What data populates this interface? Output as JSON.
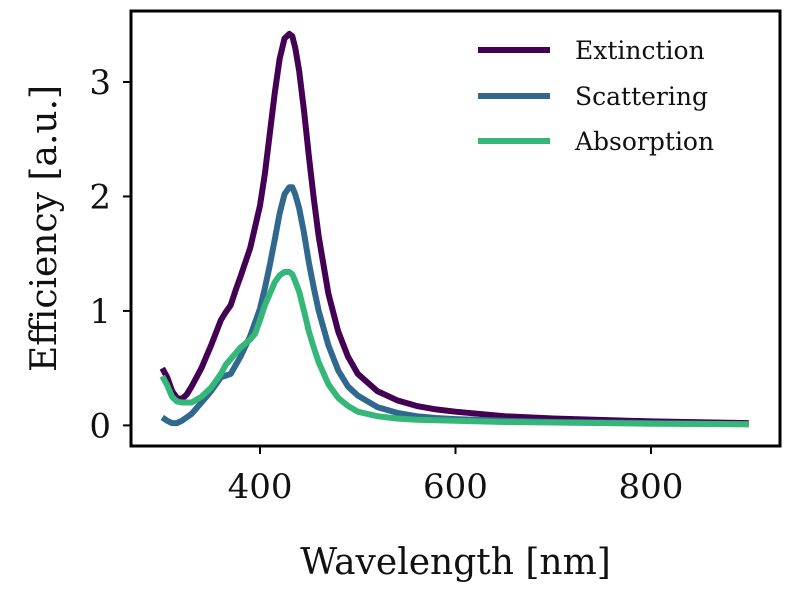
{
  "chart_data": {
    "type": "line",
    "title": "",
    "xlabel": "Wavelength [nm]",
    "ylabel": "Efficiency [a.u.]",
    "xlim": [
      268,
      932
    ],
    "ylim": [
      -0.18,
      3.62
    ],
    "xticks": [
      400,
      600,
      800
    ],
    "yticks": [
      0,
      1,
      2,
      3
    ],
    "grid": false,
    "legend_position": "top-right",
    "series": [
      {
        "name": "Extinction",
        "color": "#440154",
        "x": [
          300,
          305,
          310,
          315,
          320,
          325,
          330,
          340,
          350,
          360,
          365,
          370,
          375,
          380,
          390,
          400,
          405,
          410,
          415,
          420,
          425,
          430,
          433,
          436,
          440,
          445,
          450,
          455,
          460,
          470,
          480,
          490,
          500,
          520,
          540,
          560,
          580,
          600,
          650,
          700,
          800,
          900
        ],
        "y": [
          0.5,
          0.42,
          0.3,
          0.24,
          0.23,
          0.27,
          0.34,
          0.5,
          0.7,
          0.92,
          0.99,
          1.05,
          1.18,
          1.3,
          1.55,
          1.92,
          2.2,
          2.55,
          2.9,
          3.2,
          3.38,
          3.42,
          3.4,
          3.3,
          3.1,
          2.75,
          2.35,
          1.98,
          1.65,
          1.15,
          0.82,
          0.6,
          0.45,
          0.3,
          0.22,
          0.17,
          0.14,
          0.12,
          0.08,
          0.06,
          0.035,
          0.02
        ]
      },
      {
        "name": "Scattering",
        "color": "#31688e",
        "x": [
          300,
          305,
          310,
          315,
          320,
          330,
          340,
          350,
          360,
          370,
          380,
          390,
          400,
          405,
          410,
          415,
          420,
          425,
          430,
          433,
          436,
          440,
          445,
          450,
          455,
          460,
          470,
          480,
          490,
          500,
          520,
          540,
          560,
          580,
          600,
          650,
          700,
          800,
          900
        ],
        "y": [
          0.07,
          0.04,
          0.02,
          0.02,
          0.04,
          0.1,
          0.2,
          0.3,
          0.42,
          0.45,
          0.6,
          0.78,
          1.02,
          1.2,
          1.4,
          1.62,
          1.85,
          2.02,
          2.08,
          2.08,
          2.02,
          1.9,
          1.68,
          1.42,
          1.2,
          1.0,
          0.7,
          0.48,
          0.34,
          0.26,
          0.16,
          0.11,
          0.08,
          0.065,
          0.055,
          0.04,
          0.03,
          0.02,
          0.01
        ]
      },
      {
        "name": "Absorption",
        "color": "#35b779",
        "x": [
          300,
          305,
          310,
          315,
          320,
          330,
          340,
          350,
          360,
          365,
          370,
          380,
          390,
          395,
          400,
          405,
          410,
          415,
          420,
          425,
          430,
          433,
          436,
          440,
          445,
          450,
          455,
          460,
          470,
          480,
          490,
          500,
          520,
          540,
          560,
          580,
          600,
          650,
          700,
          800,
          900
        ],
        "y": [
          0.43,
          0.35,
          0.25,
          0.21,
          0.2,
          0.2,
          0.25,
          0.33,
          0.45,
          0.53,
          0.58,
          0.68,
          0.75,
          0.8,
          0.92,
          1.05,
          1.15,
          1.25,
          1.31,
          1.34,
          1.34,
          1.32,
          1.26,
          1.17,
          1.0,
          0.82,
          0.68,
          0.55,
          0.36,
          0.24,
          0.17,
          0.12,
          0.08,
          0.06,
          0.05,
          0.045,
          0.04,
          0.03,
          0.025,
          0.015,
          0.01
        ]
      }
    ]
  }
}
